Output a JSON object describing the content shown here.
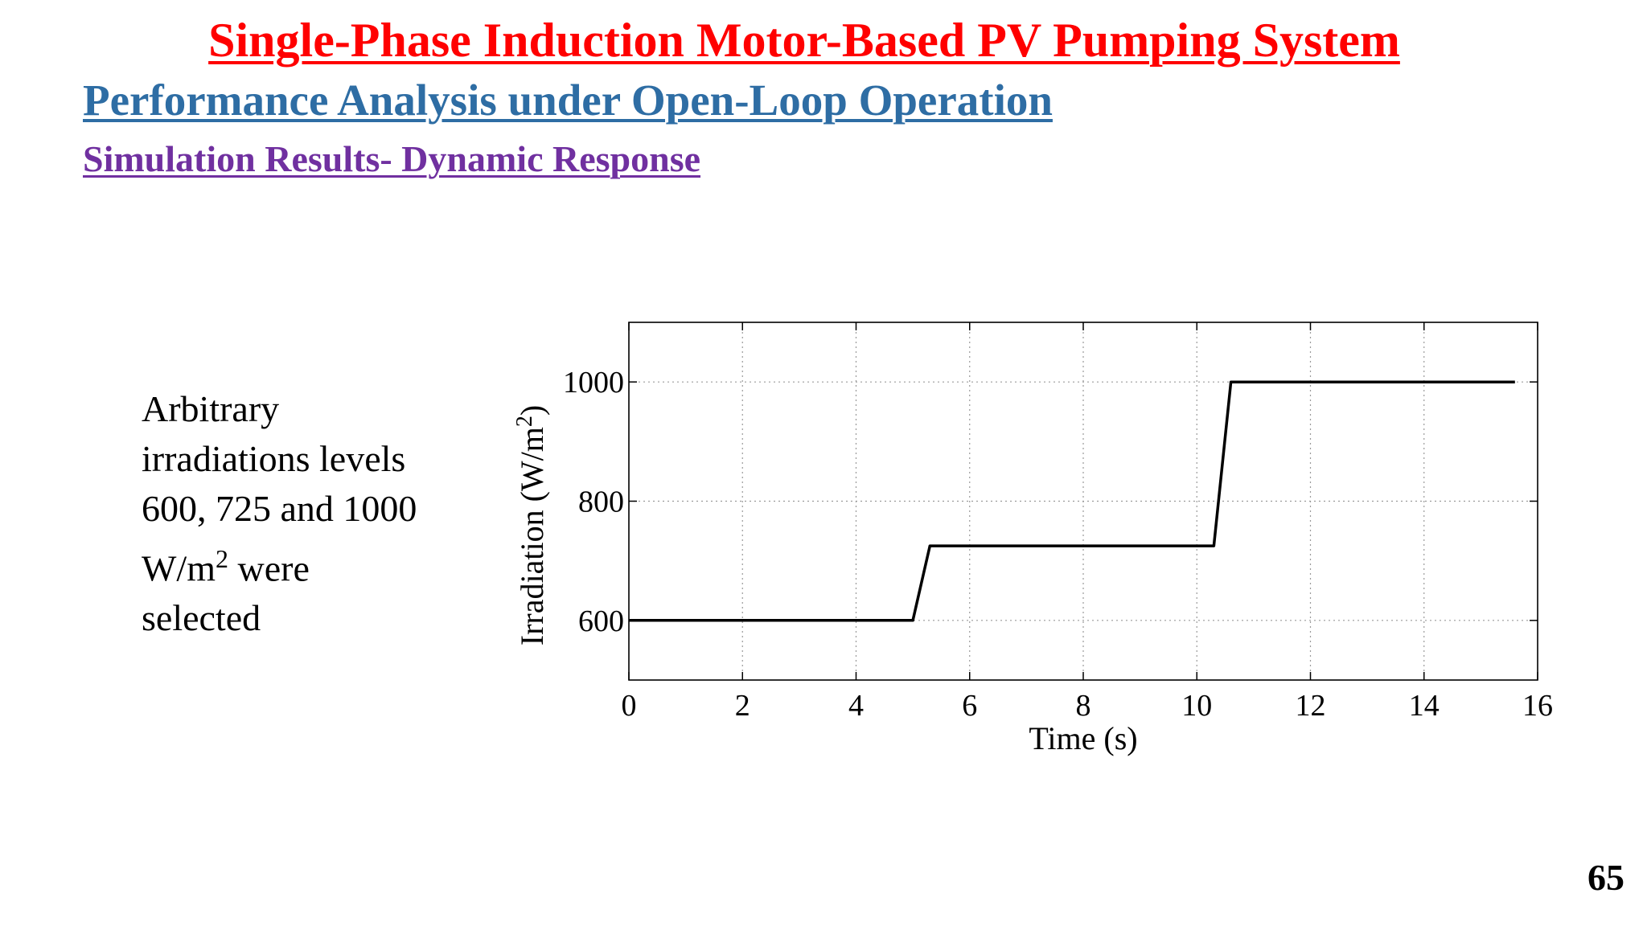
{
  "slide": {
    "title": "Single-Phase Induction Motor-Based PV Pumping System",
    "subtitle": "Performance Analysis under Open-Loop Operation",
    "section": "Simulation Results- Dynamic Response",
    "page_number": "65",
    "colors": {
      "title": "#ff0000",
      "subtitle": "#2e6da4",
      "section": "#7030a0"
    }
  },
  "description": {
    "line1": "Arbitrary",
    "line2": "irradiations levels",
    "line3": "600, 725 and 1000",
    "line4_unit": "W/m",
    "line4_sup": "2",
    "line4_rest": " were",
    "line5": "selected"
  },
  "chart_data": {
    "type": "line",
    "xlabel": "Time (s)",
    "ylabel_main": "Irradiation (W/m",
    "ylabel_sup": "2",
    "ylabel_close": ")",
    "xlim": [
      0,
      16
    ],
    "ylim": [
      500,
      1100
    ],
    "xticks": [
      0,
      2,
      4,
      6,
      8,
      10,
      12,
      14,
      16
    ],
    "yticks": [
      600,
      800,
      1000
    ],
    "grid": true,
    "series": [
      {
        "color": "#000000",
        "x": [
          0,
          5.0,
          5.3,
          10.3,
          10.6,
          15.6
        ],
        "y": [
          600,
          600,
          725,
          725,
          1000,
          1000
        ]
      }
    ]
  }
}
